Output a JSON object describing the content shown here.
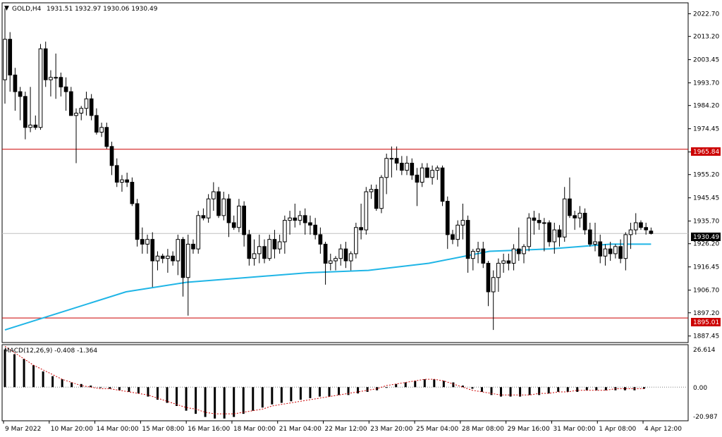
{
  "window": {
    "symbol_title": "GOLD,H4",
    "ohlc": "1931.51 1932.97 1930.06 1930.49",
    "menu_glyph": "▼"
  },
  "indicator": {
    "label": "MACD(12,26,9) -0.408 -1.364",
    "axis_top": "26.614",
    "axis_zero": "0.00",
    "axis_bottom": "-20.987"
  },
  "price_axis": {
    "ticks": [
      "2022.70",
      "2013.20",
      "2003.45",
      "1993.70",
      "1984.20",
      "1974.45",
      "1964.70",
      "1955.20",
      "1945.45",
      "1935.70",
      "1926.20",
      "1916.45",
      "1906.70",
      "1897.20",
      "1887.45"
    ],
    "current_price": "1930.49",
    "resistance_label": "1965.84",
    "support_label": "1895.01"
  },
  "time_axis": {
    "labels": [
      "9 Mar 2022",
      "10 Mar 20:00",
      "14 Mar 00:00",
      "15 Mar 08:00",
      "16 Mar 16:00",
      "18 Mar 00:00",
      "21 Mar 04:00",
      "22 Mar 12:00",
      "23 Mar 20:00",
      "25 Mar 04:00",
      "28 Mar 08:00",
      "29 Mar 16:00",
      "31 Mar 00:00",
      "1 Apr 08:00",
      "4 Apr 12:00"
    ]
  },
  "colors": {
    "background": "#ffffff",
    "candle_bull_fill": "#ffffff",
    "candle_bear_fill": "#000000",
    "moving_average": "#1fb5e6",
    "level_line": "#cc0000",
    "current_price_line": "#c0c0c0",
    "macd_signal": "#cc0000"
  },
  "chart_data": {
    "type": "candlestick",
    "symbol": "GOLD",
    "timeframe": "H4",
    "ylim": [
      1885,
      2027
    ],
    "levels": [
      1965.84,
      1895.01
    ],
    "current_price": 1930.49,
    "candles": [
      {
        "o": 1995,
        "h": 2025,
        "l": 1985,
        "c": 2012
      },
      {
        "o": 2012,
        "h": 2015,
        "l": 1990,
        "c": 1997
      },
      {
        "o": 1997,
        "h": 2000,
        "l": 1982,
        "c": 1990
      },
      {
        "o": 1990,
        "h": 1992,
        "l": 1978,
        "c": 1988
      },
      {
        "o": 1988,
        "h": 1990,
        "l": 1970,
        "c": 1975
      },
      {
        "o": 1975,
        "h": 1992,
        "l": 1973,
        "c": 1976
      },
      {
        "o": 1976,
        "h": 1980,
        "l": 1974,
        "c": 1975
      },
      {
        "o": 1975,
        "h": 2010,
        "l": 1974,
        "c": 2008
      },
      {
        "o": 2008,
        "h": 2011,
        "l": 1992,
        "c": 1995
      },
      {
        "o": 1995,
        "h": 1999,
        "l": 1988,
        "c": 1996
      },
      {
        "o": 1996,
        "h": 2006,
        "l": 1987,
        "c": 1996
      },
      {
        "o": 1996,
        "h": 1998,
        "l": 1988,
        "c": 1992
      },
      {
        "o": 1992,
        "h": 1996,
        "l": 1982,
        "c": 1990
      },
      {
        "o": 1990,
        "h": 1992,
        "l": 1980,
        "c": 1980
      },
      {
        "o": 1980,
        "h": 1983,
        "l": 1960,
        "c": 1981
      },
      {
        "o": 1981,
        "h": 1984,
        "l": 1978,
        "c": 1983
      },
      {
        "o": 1983,
        "h": 1990,
        "l": 1980,
        "c": 1987
      },
      {
        "o": 1987,
        "h": 1989,
        "l": 1978,
        "c": 1980
      },
      {
        "o": 1980,
        "h": 1983,
        "l": 1972,
        "c": 1973
      },
      {
        "o": 1973,
        "h": 1977,
        "l": 1971,
        "c": 1975
      },
      {
        "o": 1975,
        "h": 1977,
        "l": 1966,
        "c": 1967
      },
      {
        "o": 1967,
        "h": 1969,
        "l": 1955,
        "c": 1959
      },
      {
        "o": 1959,
        "h": 1962,
        "l": 1950,
        "c": 1952
      },
      {
        "o": 1952,
        "h": 1955,
        "l": 1948,
        "c": 1953
      },
      {
        "o": 1953,
        "h": 1956,
        "l": 1950,
        "c": 1952
      },
      {
        "o": 1952,
        "h": 1954,
        "l": 1942,
        "c": 1943
      },
      {
        "o": 1943,
        "h": 1945,
        "l": 1925,
        "c": 1928
      },
      {
        "o": 1928,
        "h": 1933,
        "l": 1922,
        "c": 1926
      },
      {
        "o": 1926,
        "h": 1930,
        "l": 1922,
        "c": 1928
      },
      {
        "o": 1928,
        "h": 1931,
        "l": 1908,
        "c": 1919
      },
      {
        "o": 1919,
        "h": 1923,
        "l": 1915,
        "c": 1921
      },
      {
        "o": 1921,
        "h": 1922,
        "l": 1918,
        "c": 1920
      },
      {
        "o": 1920,
        "h": 1924,
        "l": 1914,
        "c": 1921
      },
      {
        "o": 1921,
        "h": 1923,
        "l": 1917,
        "c": 1919
      },
      {
        "o": 1919,
        "h": 1930,
        "l": 1913,
        "c": 1928
      },
      {
        "o": 1928,
        "h": 1929,
        "l": 1904,
        "c": 1912
      },
      {
        "o": 1912,
        "h": 1930,
        "l": 1896,
        "c": 1926
      },
      {
        "o": 1926,
        "h": 1928,
        "l": 1922,
        "c": 1924
      },
      {
        "o": 1924,
        "h": 1940,
        "l": 1922,
        "c": 1938
      },
      {
        "o": 1938,
        "h": 1941,
        "l": 1936,
        "c": 1937
      },
      {
        "o": 1937,
        "h": 1947,
        "l": 1935,
        "c": 1945
      },
      {
        "o": 1945,
        "h": 1952,
        "l": 1940,
        "c": 1948
      },
      {
        "o": 1948,
        "h": 1950,
        "l": 1937,
        "c": 1938
      },
      {
        "o": 1938,
        "h": 1948,
        "l": 1936,
        "c": 1945
      },
      {
        "o": 1945,
        "h": 1947,
        "l": 1929,
        "c": 1935
      },
      {
        "o": 1935,
        "h": 1938,
        "l": 1932,
        "c": 1933
      },
      {
        "o": 1933,
        "h": 1945,
        "l": 1931,
        "c": 1942
      },
      {
        "o": 1942,
        "h": 1944,
        "l": 1925,
        "c": 1930
      },
      {
        "o": 1930,
        "h": 1932,
        "l": 1917,
        "c": 1920
      },
      {
        "o": 1920,
        "h": 1928,
        "l": 1917,
        "c": 1922
      },
      {
        "o": 1922,
        "h": 1930,
        "l": 1918,
        "c": 1925
      },
      {
        "o": 1925,
        "h": 1928,
        "l": 1918,
        "c": 1920
      },
      {
        "o": 1920,
        "h": 1930,
        "l": 1919,
        "c": 1928
      },
      {
        "o": 1928,
        "h": 1932,
        "l": 1920,
        "c": 1924
      },
      {
        "o": 1924,
        "h": 1930,
        "l": 1922,
        "c": 1927
      },
      {
        "o": 1927,
        "h": 1938,
        "l": 1922,
        "c": 1936
      },
      {
        "o": 1936,
        "h": 1940,
        "l": 1930,
        "c": 1937
      },
      {
        "o": 1937,
        "h": 1943,
        "l": 1933,
        "c": 1936
      },
      {
        "o": 1936,
        "h": 1940,
        "l": 1934,
        "c": 1938
      },
      {
        "o": 1938,
        "h": 1941,
        "l": 1930,
        "c": 1935
      },
      {
        "o": 1935,
        "h": 1938,
        "l": 1930,
        "c": 1934
      },
      {
        "o": 1934,
        "h": 1937,
        "l": 1928,
        "c": 1930
      },
      {
        "o": 1930,
        "h": 1933,
        "l": 1922,
        "c": 1926
      },
      {
        "o": 1926,
        "h": 1927,
        "l": 1909,
        "c": 1918
      },
      {
        "o": 1918,
        "h": 1922,
        "l": 1915,
        "c": 1919
      },
      {
        "o": 1919,
        "h": 1921,
        "l": 1915,
        "c": 1920
      },
      {
        "o": 1920,
        "h": 1926,
        "l": 1917,
        "c": 1924
      },
      {
        "o": 1924,
        "h": 1927,
        "l": 1916,
        "c": 1919
      },
      {
        "o": 1919,
        "h": 1923,
        "l": 1915,
        "c": 1922
      },
      {
        "o": 1922,
        "h": 1935,
        "l": 1920,
        "c": 1933
      },
      {
        "o": 1933,
        "h": 1943,
        "l": 1928,
        "c": 1932
      },
      {
        "o": 1932,
        "h": 1950,
        "l": 1930,
        "c": 1948
      },
      {
        "o": 1948,
        "h": 1951,
        "l": 1945,
        "c": 1949
      },
      {
        "o": 1949,
        "h": 1951,
        "l": 1940,
        "c": 1941
      },
      {
        "o": 1941,
        "h": 1955,
        "l": 1939,
        "c": 1954
      },
      {
        "o": 1954,
        "h": 1964,
        "l": 1947,
        "c": 1962
      },
      {
        "o": 1962,
        "h": 1967,
        "l": 1954,
        "c": 1962
      },
      {
        "o": 1962,
        "h": 1967,
        "l": 1957,
        "c": 1960
      },
      {
        "o": 1960,
        "h": 1963,
        "l": 1955,
        "c": 1957
      },
      {
        "o": 1957,
        "h": 1963,
        "l": 1955,
        "c": 1960
      },
      {
        "o": 1960,
        "h": 1962,
        "l": 1953,
        "c": 1955
      },
      {
        "o": 1955,
        "h": 1958,
        "l": 1942,
        "c": 1952
      },
      {
        "o": 1952,
        "h": 1960,
        "l": 1950,
        "c": 1958
      },
      {
        "o": 1958,
        "h": 1960,
        "l": 1954,
        "c": 1954
      },
      {
        "o": 1954,
        "h": 1959,
        "l": 1951,
        "c": 1957
      },
      {
        "o": 1957,
        "h": 1959,
        "l": 1953,
        "c": 1958
      },
      {
        "o": 1958,
        "h": 1959,
        "l": 1942,
        "c": 1944
      },
      {
        "o": 1944,
        "h": 1946,
        "l": 1924,
        "c": 1930
      },
      {
        "o": 1930,
        "h": 1932,
        "l": 1926,
        "c": 1928
      },
      {
        "o": 1928,
        "h": 1936,
        "l": 1925,
        "c": 1934
      },
      {
        "o": 1934,
        "h": 1943,
        "l": 1928,
        "c": 1936
      },
      {
        "o": 1936,
        "h": 1938,
        "l": 1914,
        "c": 1920
      },
      {
        "o": 1920,
        "h": 1924,
        "l": 1915,
        "c": 1923
      },
      {
        "o": 1923,
        "h": 1927,
        "l": 1918,
        "c": 1924
      },
      {
        "o": 1924,
        "h": 1927,
        "l": 1916,
        "c": 1918
      },
      {
        "o": 1918,
        "h": 1919,
        "l": 1900,
        "c": 1906
      },
      {
        "o": 1906,
        "h": 1915,
        "l": 1890,
        "c": 1912
      },
      {
        "o": 1912,
        "h": 1920,
        "l": 1906,
        "c": 1918
      },
      {
        "o": 1918,
        "h": 1922,
        "l": 1914,
        "c": 1919
      },
      {
        "o": 1919,
        "h": 1922,
        "l": 1915,
        "c": 1918
      },
      {
        "o": 1918,
        "h": 1926,
        "l": 1915,
        "c": 1924
      },
      {
        "o": 1924,
        "h": 1933,
        "l": 1919,
        "c": 1922
      },
      {
        "o": 1922,
        "h": 1926,
        "l": 1918,
        "c": 1925
      },
      {
        "o": 1925,
        "h": 1939,
        "l": 1923,
        "c": 1937
      },
      {
        "o": 1937,
        "h": 1940,
        "l": 1930,
        "c": 1936
      },
      {
        "o": 1936,
        "h": 1939,
        "l": 1932,
        "c": 1935
      },
      {
        "o": 1935,
        "h": 1937,
        "l": 1923,
        "c": 1935
      },
      {
        "o": 1935,
        "h": 1936,
        "l": 1925,
        "c": 1927
      },
      {
        "o": 1927,
        "h": 1935,
        "l": 1922,
        "c": 1932
      },
      {
        "o": 1932,
        "h": 1934,
        "l": 1925,
        "c": 1929
      },
      {
        "o": 1929,
        "h": 1950,
        "l": 1927,
        "c": 1945
      },
      {
        "o": 1945,
        "h": 1954,
        "l": 1937,
        "c": 1938
      },
      {
        "o": 1938,
        "h": 1940,
        "l": 1932,
        "c": 1937
      },
      {
        "o": 1937,
        "h": 1942,
        "l": 1933,
        "c": 1939
      },
      {
        "o": 1939,
        "h": 1941,
        "l": 1930,
        "c": 1932
      },
      {
        "o": 1932,
        "h": 1935,
        "l": 1925,
        "c": 1926
      },
      {
        "o": 1926,
        "h": 1935,
        "l": 1923,
        "c": 1927
      },
      {
        "o": 1927,
        "h": 1930,
        "l": 1918,
        "c": 1921
      },
      {
        "o": 1921,
        "h": 1926,
        "l": 1917,
        "c": 1924
      },
      {
        "o": 1924,
        "h": 1927,
        "l": 1919,
        "c": 1922
      },
      {
        "o": 1922,
        "h": 1926,
        "l": 1920,
        "c": 1925
      },
      {
        "o": 1925,
        "h": 1928,
        "l": 1918,
        "c": 1920
      },
      {
        "o": 1920,
        "h": 1931,
        "l": 1915,
        "c": 1930
      },
      {
        "o": 1930,
        "h": 1935,
        "l": 1924,
        "c": 1932
      },
      {
        "o": 1932,
        "h": 1939,
        "l": 1930,
        "c": 1935
      },
      {
        "o": 1935,
        "h": 1936,
        "l": 1932,
        "c": 1933
      },
      {
        "o": 1933,
        "h": 1935,
        "l": 1930,
        "c": 1932
      },
      {
        "o": 1931.51,
        "h": 1932.97,
        "l": 1930.06,
        "c": 1930.49
      }
    ],
    "moving_average": [
      {
        "i": 0,
        "v": 1890
      },
      {
        "i": 12,
        "v": 1898
      },
      {
        "i": 24,
        "v": 1906
      },
      {
        "i": 36,
        "v": 1910
      },
      {
        "i": 48,
        "v": 1912
      },
      {
        "i": 60,
        "v": 1914
      },
      {
        "i": 72,
        "v": 1915
      },
      {
        "i": 84,
        "v": 1918
      },
      {
        "i": 96,
        "v": 1923
      },
      {
        "i": 108,
        "v": 1924
      },
      {
        "i": 120,
        "v": 1926
      },
      {
        "i": 128,
        "v": 1926
      }
    ],
    "macd": {
      "ylim": [
        -20.987,
        26.614
      ],
      "histogram": [
        24,
        21,
        18,
        14,
        10,
        7,
        5,
        3,
        2,
        1,
        0,
        -1,
        -2,
        -3,
        -4,
        -6,
        -8,
        -10,
        -12,
        -15,
        -17,
        -19,
        -20,
        -20,
        -19,
        -17,
        -15,
        -13,
        -11,
        -10,
        -9,
        -8,
        -7,
        -6,
        -6,
        -5,
        -5,
        -4,
        -3,
        -2,
        0,
        2,
        3,
        4,
        5,
        5,
        4,
        3,
        1,
        -1,
        -3,
        -5,
        -6,
        -6,
        -6,
        -5,
        -5,
        -4,
        -3,
        -3,
        -3,
        -2,
        -2,
        -2,
        -2,
        -2,
        -2,
        -1
      ],
      "signal": [
        26,
        22,
        18,
        14,
        11,
        8,
        5,
        3,
        1,
        0,
        -1,
        -1,
        -2,
        -3,
        -4,
        -5,
        -7,
        -9,
        -11,
        -13,
        -14,
        -16,
        -17,
        -17,
        -17,
        -16,
        -15,
        -14,
        -12,
        -11,
        -10,
        -9,
        -8,
        -7,
        -6,
        -5,
        -4,
        -3,
        -2,
        -1,
        1,
        2,
        3,
        4,
        5,
        5,
        4,
        2,
        0,
        -2,
        -3,
        -4,
        -5,
        -5,
        -5,
        -5,
        -4,
        -4,
        -3,
        -3,
        -2,
        -2,
        -2,
        -2,
        -1,
        -1,
        -1,
        -1
      ]
    }
  }
}
